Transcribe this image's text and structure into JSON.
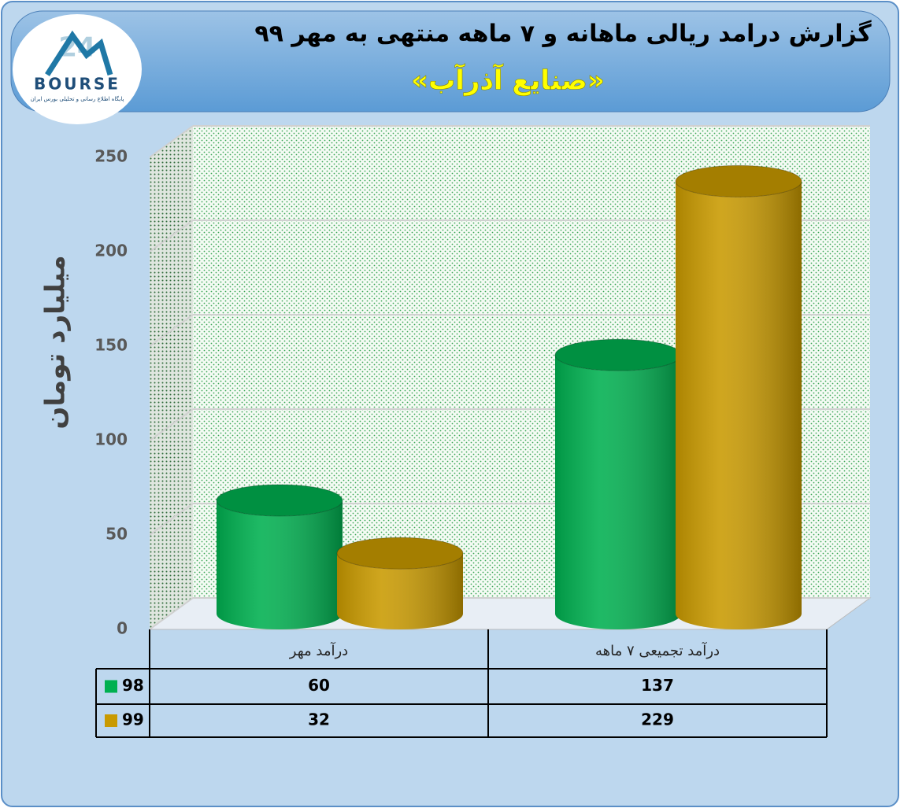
{
  "logo": {
    "mark": "24",
    "text": "BOURSE",
    "tagline": "پایگاه اطلاع رسانی و تحلیلی بورس ایران"
  },
  "chart_data": {
    "type": "bar3d",
    "title": "گزارش درامد ریالی ماهانه و ۷ ماهه منتهی به مهر ۹۹",
    "subtitle": "«صنایع آذرآب»",
    "y_label": "میلیارد تومان",
    "categories": [
      "درآمد مهر",
      "درآمد تجمیعی ۷ ماهه"
    ],
    "series": [
      {
        "name": "98",
        "color": "#00b050",
        "values": [
          60,
          137
        ]
      },
      {
        "name": "99",
        "color": "#c99a00",
        "values": [
          32,
          229
        ]
      }
    ],
    "ylim": [
      0,
      250
    ],
    "yticks": [
      0,
      50,
      100,
      150,
      200,
      250
    ],
    "grid": true,
    "data_table": true
  }
}
